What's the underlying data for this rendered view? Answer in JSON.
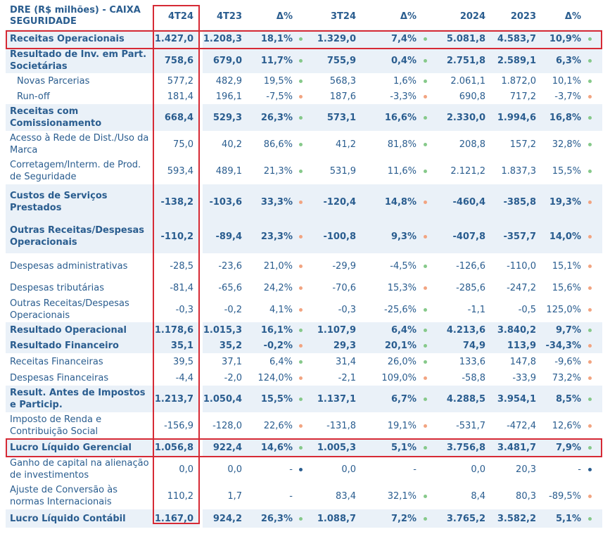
{
  "colors": {
    "text": "#2a5d8f",
    "highlight_border": "#d62a35",
    "row_shade": "#eaf1f8",
    "dot_green": "#86c98a",
    "dot_orange": "#f2a481",
    "dot_blue": "#2a5d8f"
  },
  "header": {
    "label": "DRE (R$ milhões) - CAIXA SEGURIDADE",
    "cols": [
      "4T24",
      "4T23",
      "Δ%",
      "3T24",
      "Δ%",
      "2024",
      "2023",
      "Δ%"
    ]
  },
  "rows": [
    {
      "label": "Receitas Operacionais",
      "bold": true,
      "shaded": true,
      "h": 26,
      "v": [
        "1.427,0",
        "1.208,3",
        "18,1%",
        "1.329,0",
        "7,4%",
        "5.081,8",
        "4.583,7",
        "10,9%"
      ],
      "dots": [
        "green",
        "green",
        "green"
      ]
    },
    {
      "label": "Resultado de Inv. em Part. Societárias",
      "bold": true,
      "shaded": true,
      "h": 36,
      "v": [
        "758,6",
        "679,0",
        "11,7%",
        "755,9",
        "0,4%",
        "2.751,8",
        "2.589,1",
        "6,3%"
      ],
      "dots": [
        "green",
        "green",
        "green"
      ]
    },
    {
      "label": "Novas Parcerias",
      "sub": true,
      "h": 22,
      "v": [
        "577,2",
        "482,9",
        "19,5%",
        "568,3",
        "1,6%",
        "2.061,1",
        "1.872,0",
        "10,1%"
      ],
      "dots": [
        "green",
        "green",
        "green"
      ]
    },
    {
      "label": "Run-off",
      "sub": true,
      "h": 22,
      "v": [
        "181,4",
        "196,1",
        "-7,5%",
        "187,6",
        "-3,3%",
        "690,8",
        "717,2",
        "-3,7%"
      ],
      "dots": [
        "orange",
        "orange",
        "orange"
      ]
    },
    {
      "label": "Receitas com Comissionamento",
      "bold": true,
      "shaded": true,
      "h": 38,
      "v": [
        "668,4",
        "529,3",
        "26,3%",
        "573,1",
        "16,6%",
        "2.330,0",
        "1.994,6",
        "16,8%"
      ],
      "dots": [
        "green",
        "green",
        "green"
      ]
    },
    {
      "label": "Acesso à Rede de Dist./Uso da Marca",
      "h": 38,
      "v": [
        "75,0",
        "40,2",
        "86,6%",
        "41,2",
        "81,8%",
        "208,8",
        "157,2",
        "32,8%"
      ],
      "dots": [
        "green",
        "green",
        "green"
      ]
    },
    {
      "label": "Corretagem/Interm. de Prod. de Seguridade",
      "h": 38,
      "v": [
        "593,4",
        "489,1",
        "21,3%",
        "531,9",
        "11,6%",
        "2.121,2",
        "1.837,3",
        "15,5%"
      ],
      "dots": [
        "green",
        "green",
        "green"
      ]
    },
    {
      "label": "Custos de Serviços Prestados",
      "bold": true,
      "shaded": true,
      "h": 50,
      "v": [
        "-138,2",
        "-103,6",
        "33,3%",
        "-120,4",
        "14,8%",
        "-460,4",
        "-385,8",
        "19,3%"
      ],
      "dots": [
        "orange",
        "orange",
        "orange"
      ]
    },
    {
      "label": "Outras Receitas/Despesas Operacionais",
      "bold": true,
      "shaded": true,
      "h": 48,
      "v": [
        "-110,2",
        "-89,4",
        "23,3%",
        "-100,8",
        "9,3%",
        "-407,8",
        "-357,7",
        "14,0%"
      ],
      "dots": [
        "orange",
        "orange",
        "orange"
      ]
    },
    {
      "label": "Despesas administrativas",
      "h": 36,
      "v": [
        "-28,5",
        "-23,6",
        "21,0%",
        "-29,9",
        "-4,5%",
        "-126,6",
        "-110,0",
        "15,1%"
      ],
      "dots": [
        "orange",
        "green",
        "orange"
      ]
    },
    {
      "label": "Despesas tributárias",
      "h": 26,
      "v": [
        "-81,4",
        "-65,6",
        "24,2%",
        "-70,6",
        "15,3%",
        "-285,6",
        "-247,2",
        "15,6%"
      ],
      "dots": [
        "orange",
        "orange",
        "orange"
      ]
    },
    {
      "label": "Outras Receitas/Despesas Operacionais",
      "h": 36,
      "v": [
        "-0,3",
        "-0,2",
        "4,1%",
        "-0,3",
        "-25,6%",
        "-1,1",
        "-0,5",
        "125,0%"
      ],
      "dots": [
        "orange",
        "green",
        "orange"
      ]
    },
    {
      "label": "Resultado Operacional",
      "bold": true,
      "shaded": true,
      "h": 22,
      "v": [
        "1.178,6",
        "1.015,3",
        "16,1%",
        "1.107,9",
        "6,4%",
        "4.213,6",
        "3.840,2",
        "9,7%"
      ],
      "dots": [
        "green",
        "green",
        "green"
      ]
    },
    {
      "label": "Resultado Financeiro",
      "bold": true,
      "shaded": true,
      "h": 22,
      "v": [
        "35,1",
        "35,2",
        "-0,2%",
        "29,3",
        "20,1%",
        "74,9",
        "113,9",
        "-34,3%"
      ],
      "dots": [
        "orange",
        "green",
        "orange"
      ]
    },
    {
      "label": "Receitas Financeiras",
      "h": 24,
      "v": [
        "39,5",
        "37,1",
        "6,4%",
        "31,4",
        "26,0%",
        "133,6",
        "147,8",
        "-9,6%"
      ],
      "dots": [
        "green",
        "green",
        "orange"
      ]
    },
    {
      "label": "Despesas Financeiras",
      "h": 22,
      "v": [
        "-4,4",
        "-2,0",
        "124,0%",
        "-2,1",
        "109,0%",
        "-58,8",
        "-33,9",
        "73,2%"
      ],
      "dots": [
        "orange",
        "orange",
        "orange"
      ]
    },
    {
      "label": "Result. Antes de Impostos e Particip.",
      "bold": true,
      "shaded": true,
      "h": 38,
      "v": [
        "1.213,7",
        "1.050,4",
        "15,5%",
        "1.137,1",
        "6,7%",
        "4.288,5",
        "3.954,1",
        "8,5%"
      ],
      "dots": [
        "green",
        "green",
        "green"
      ]
    },
    {
      "label": "Imposto de Renda e Contribuição Social",
      "h": 38,
      "v": [
        "-156,9",
        "-128,0",
        "22,6%",
        "-131,8",
        "19,1%",
        "-531,7",
        "-472,4",
        "12,6%"
      ],
      "dots": [
        "orange",
        "orange",
        "orange"
      ]
    },
    {
      "label": "Lucro Líquido Gerencial",
      "bold": true,
      "shaded": true,
      "h": 24,
      "v": [
        "1.056,8",
        "922,4",
        "14,6%",
        "1.005,3",
        "5,1%",
        "3.756,8",
        "3.481,7",
        "7,9%"
      ],
      "dots": [
        "green",
        "green",
        "green"
      ]
    },
    {
      "label": "Ganho de capital na alienação de investimentos",
      "h": 38,
      "v": [
        "0,0",
        "0,0",
        "-",
        "0,0",
        "-",
        "0,0",
        "20,3",
        "-"
      ],
      "dots": [
        "blue",
        "",
        "blue"
      ]
    },
    {
      "label": "Ajuste de Conversão às normas Internacionais",
      "h": 38,
      "v": [
        "110,2",
        "1,7",
        "-",
        "83,4",
        "32,1%",
        "8,4",
        "80,3",
        "-89,5%"
      ],
      "dots": [
        "",
        "green",
        "orange"
      ]
    },
    {
      "label": "Lucro Líquido Contábil",
      "bold": true,
      "shaded": true,
      "h": 26,
      "v": [
        "1.167,0",
        "924,2",
        "26,3%",
        "1.088,7",
        "7,2%",
        "3.765,2",
        "3.582,2",
        "5,1%"
      ],
      "dots": [
        "green",
        "green",
        "green"
      ]
    }
  ]
}
